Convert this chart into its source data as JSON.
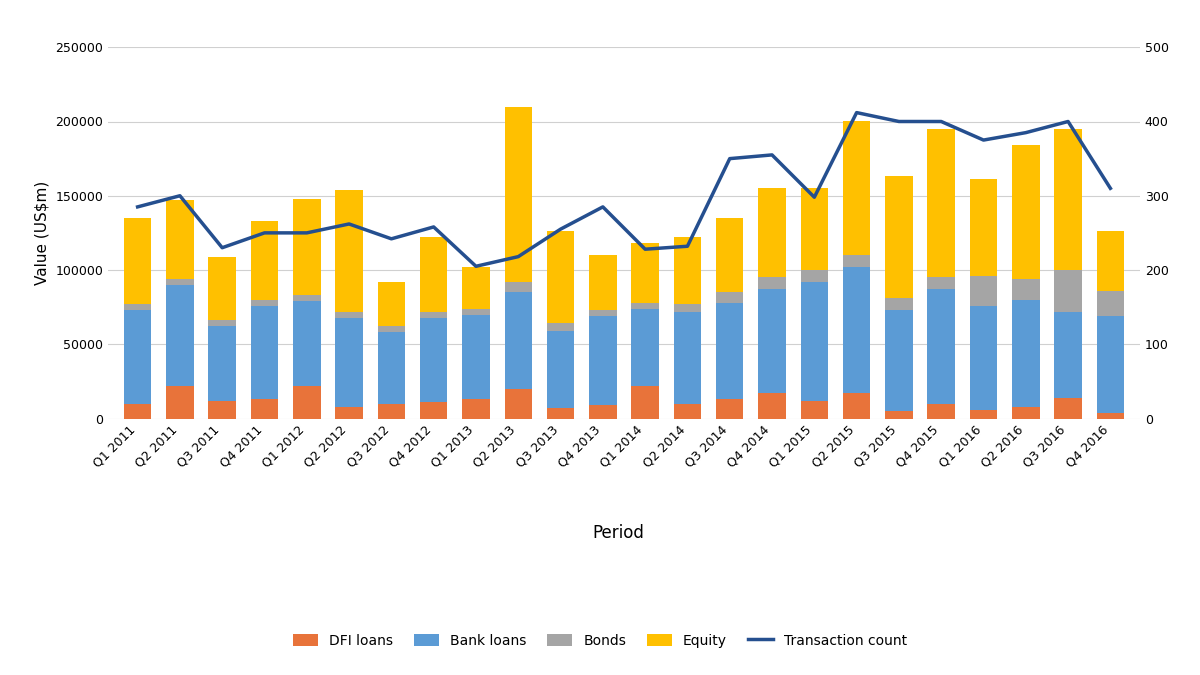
{
  "periods": [
    "Q1 2011",
    "Q2 2011",
    "Q3 2011",
    "Q4 2011",
    "Q1 2012",
    "Q2 2012",
    "Q3 2012",
    "Q4 2012",
    "Q1 2013",
    "Q2 2013",
    "Q3 2013",
    "Q4 2013",
    "Q1 2014",
    "Q2 2014",
    "Q3 2014",
    "Q4 2014",
    "Q1 2015",
    "Q2 2015",
    "Q3 2015",
    "Q4 2015",
    "Q1 2016",
    "Q2 2016",
    "Q3 2016",
    "Q4 2016"
  ],
  "dfi_loans": [
    10000,
    22000,
    12000,
    13000,
    22000,
    8000,
    10000,
    11000,
    13000,
    20000,
    7000,
    9000,
    22000,
    10000,
    13000,
    17000,
    12000,
    17000,
    5000,
    10000,
    6000,
    8000,
    14000,
    4000
  ],
  "bank_loans": [
    63000,
    68000,
    50000,
    63000,
    57000,
    60000,
    48000,
    57000,
    57000,
    65000,
    52000,
    60000,
    52000,
    62000,
    65000,
    70000,
    80000,
    85000,
    68000,
    77000,
    70000,
    72000,
    58000,
    65000
  ],
  "bonds": [
    4000,
    4000,
    4000,
    4000,
    4000,
    4000,
    4000,
    4000,
    4000,
    7000,
    5000,
    4000,
    4000,
    5000,
    7000,
    8000,
    8000,
    8000,
    8000,
    8000,
    20000,
    14000,
    28000,
    17000
  ],
  "equity": [
    58000,
    53000,
    43000,
    53000,
    65000,
    82000,
    30000,
    50000,
    28000,
    118000,
    62000,
    37000,
    40000,
    45000,
    50000,
    60000,
    55000,
    90000,
    82000,
    100000,
    65000,
    90000,
    95000,
    40000
  ],
  "transaction_count": [
    285,
    300,
    230,
    250,
    250,
    262,
    242,
    258,
    205,
    218,
    255,
    285,
    228,
    232,
    350,
    355,
    298,
    412,
    400,
    400,
    375,
    385,
    400,
    310
  ],
  "ylim_left": [
    0,
    250000
  ],
  "ylim_right": [
    0,
    500
  ],
  "ylabel_left": "Value (US$m)",
  "xlabel": "Period",
  "bar_colors": {
    "dfi_loans": "#e8733a",
    "bank_loans": "#5b9bd5",
    "bonds": "#a5a5a5",
    "equity": "#ffc000"
  },
  "line_color": "#254f8f",
  "background_color": "#ffffff",
  "legend_labels": [
    "DFI loans",
    "Bank loans",
    "Bonds",
    "Equity",
    "Transaction count"
  ],
  "grid_color": "#d0d0d0",
  "tick_fontsize": 9,
  "ylabel_fontsize": 11,
  "xlabel_fontsize": 12,
  "legend_fontsize": 10
}
